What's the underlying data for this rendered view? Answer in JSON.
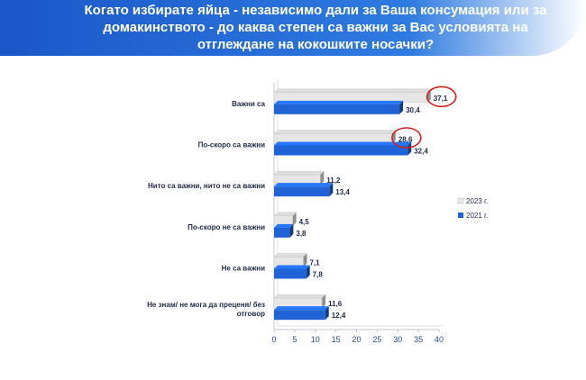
{
  "header": {
    "title": "Когато избирате яйца - независимо дали за Ваша консумация или за домакинството - до каква степен са важни за Вас условията на отглеждане на кокошките носачки?"
  },
  "chart_data": {
    "type": "bar",
    "orientation": "horizontal",
    "categories": [
      "Важни са",
      "По-скоро са важни",
      "Нито са важни, нито не са важни",
      "По-скоро не са важни",
      "Не са важни",
      "Не знам/ не мога да преценя/ без отговор"
    ],
    "series": [
      {
        "name": "2023 г.",
        "values": [
          37.1,
          28.6,
          11.2,
          4.5,
          7.1,
          11.6
        ],
        "labels": [
          "37,1",
          "28,6",
          "11,2",
          "4,5",
          "7,1",
          "11,6"
        ],
        "color": "#e6e6e6"
      },
      {
        "name": "2021 г.",
        "values": [
          30.4,
          32.4,
          13.4,
          3.8,
          7.8,
          12.4
        ],
        "labels": [
          "30,4",
          "32,4",
          "13,4",
          "3,8",
          "7,8",
          "12,4"
        ],
        "color": "#1f63d6"
      }
    ],
    "xlim": [
      0,
      40
    ],
    "xticks": [
      0,
      5,
      10,
      15,
      20,
      25,
      30,
      35,
      40
    ],
    "grid": false,
    "legend_position": "right",
    "highlighted": [
      "37,1",
      "28,6"
    ],
    "highlight_color": "#d62020"
  }
}
